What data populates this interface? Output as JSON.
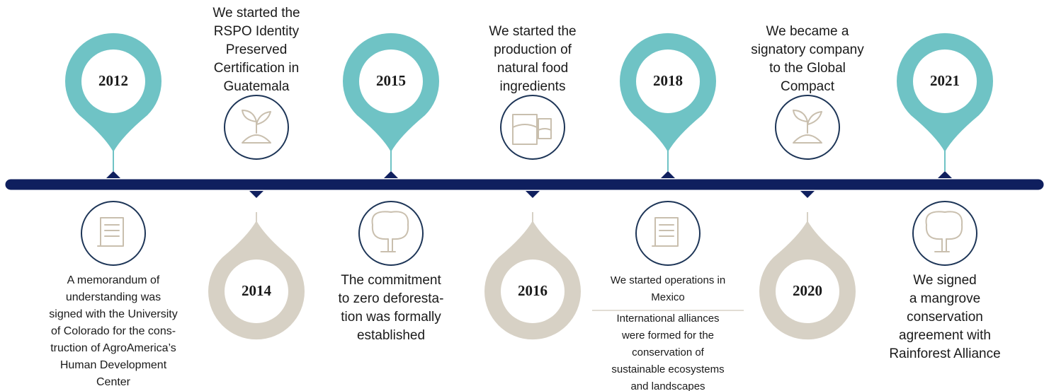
{
  "milestones": [
    {
      "year": "2012",
      "position": "top",
      "texts": [
        [
          "A memorandum of",
          "understanding was",
          "signed with the University",
          "of Colorado for the cons-",
          "truction of AgroAmerica’s",
          "Human Development",
          "Center"
        ]
      ]
    },
    {
      "year": "2014",
      "position": "bottom",
      "texts": [
        [
          "We started the",
          "RSPO Identity",
          "Preserved",
          "Certification in",
          "Guatemala"
        ]
      ]
    },
    {
      "year": "2015",
      "position": "top",
      "texts": [
        [
          "The commitment",
          "to zero deforesta-",
          "tion was formally",
          "established"
        ]
      ]
    },
    {
      "year": "2016",
      "position": "bottom",
      "texts": [
        [
          "We started the",
          "production of",
          "natural food",
          "ingredients"
        ]
      ]
    },
    {
      "year": "2018",
      "position": "top",
      "texts": [
        [
          "We started operations in",
          "Mexico"
        ],
        [
          "International alliances",
          "were formed for the",
          "conservation of",
          "sustainable ecosystems",
          "and landscapes"
        ]
      ]
    },
    {
      "year": "2020",
      "position": "bottom",
      "texts": [
        [
          "We became a",
          "signatory company",
          "to the Global",
          "Compact"
        ]
      ]
    },
    {
      "year": "2021",
      "position": "top",
      "texts": [
        [
          "We signed",
          "a mangrove",
          "conservation",
          "agreement with",
          "Rainforest Alliance"
        ]
      ]
    }
  ]
}
